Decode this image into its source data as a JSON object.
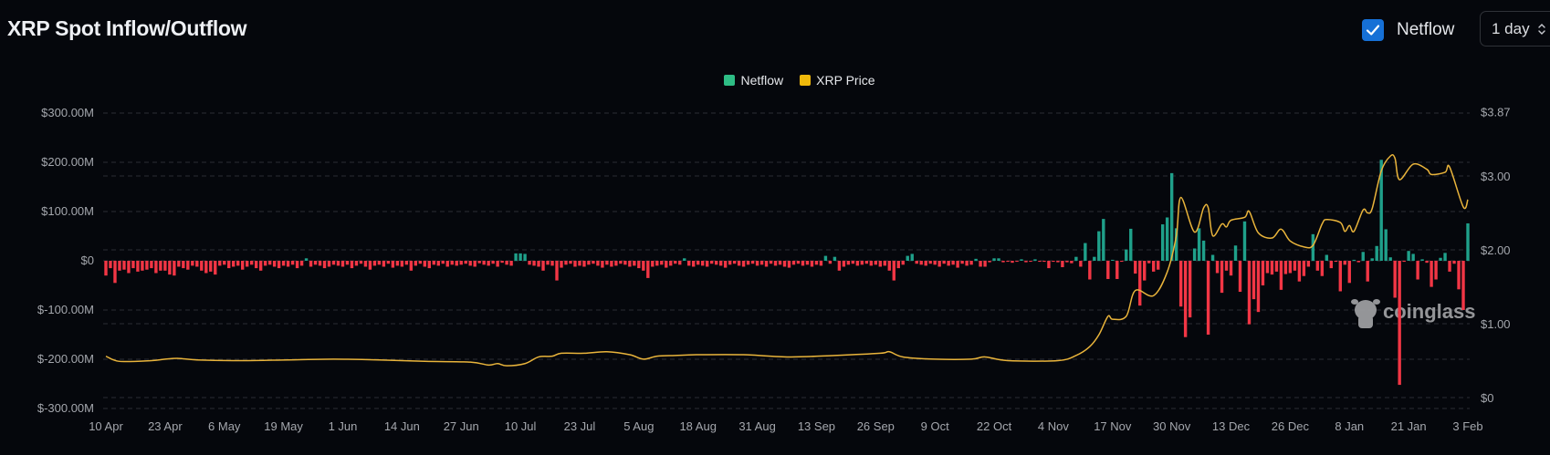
{
  "header": {
    "title": "XRP Spot Inflow/Outflow"
  },
  "controls": {
    "netflow_toggle": {
      "label": "Netflow",
      "checked": true,
      "icon": "check-icon"
    },
    "interval_select": {
      "value": "1 day",
      "icon": "up-down-chevron-icon"
    }
  },
  "watermark": {
    "text": "coinglass"
  },
  "colors": {
    "inflow": "#1fa08a",
    "outflow": "#f23645",
    "price": "#e9b43b",
    "netflow_legend": "#2ebd85",
    "price_legend": "#f0b90b",
    "background": "#05070c",
    "grid": "#2b2e35"
  },
  "chart_data": {
    "type": "bar+line",
    "title": "XRP Spot Inflow/Outflow",
    "legend": {
      "position": "top-center",
      "entries": [
        "Netflow",
        "XRP Price"
      ]
    },
    "grid": true,
    "x_tick_labels": [
      "10 Apr",
      "23 Apr",
      "6 May",
      "19 May",
      "1 Jun",
      "14 Jun",
      "27 Jun",
      "10 Jul",
      "23 Jul",
      "5 Aug",
      "18 Aug",
      "31 Aug",
      "13 Sep",
      "26 Sep",
      "9 Oct",
      "22 Oct",
      "4 Nov",
      "17 Nov",
      "30 Nov",
      "13 Dec",
      "26 Dec",
      "8 Jan",
      "21 Jan",
      "3 Feb"
    ],
    "y_left": {
      "ticks": [
        "$300.00M",
        "$200.00M",
        "$100.00M",
        "$0",
        "$-100.00M",
        "$-200.00M",
        "$-300.00M"
      ],
      "range": [
        -300,
        300
      ],
      "unit": "USD millions"
    },
    "y_right": {
      "ticks": [
        "$3.87",
        "$3.00",
        "$2.00",
        "$1.00",
        "$0"
      ],
      "range": [
        0,
        3.87
      ],
      "unit": "USD"
    },
    "series": [
      {
        "name": "Netflow",
        "type": "bar",
        "axis": "left",
        "interval": "daily",
        "from": "10 Apr",
        "to": "3 Feb",
        "values": [
          -30,
          -15,
          -45,
          -20,
          -18,
          -25,
          -15,
          -22,
          -20,
          -18,
          -15,
          -25,
          -20,
          -20,
          -28,
          -30,
          -12,
          -15,
          -18,
          -10,
          -12,
          -20,
          -25,
          -22,
          -28,
          -10,
          -8,
          -15,
          -12,
          -10,
          -18,
          -12,
          -8,
          -15,
          -20,
          -10,
          -8,
          -12,
          -15,
          -10,
          -12,
          -8,
          -15,
          -10,
          5,
          -12,
          -8,
          -10,
          -15,
          -12,
          -8,
          -10,
          -12,
          -8,
          -15,
          -10,
          -6,
          -12,
          -18,
          -10,
          -8,
          -12,
          -6,
          -14,
          -10,
          -12,
          -8,
          -20,
          -10,
          -6,
          -12,
          -15,
          -8,
          -10,
          -6,
          -12,
          -8,
          -10,
          -8,
          -6,
          -10,
          -12,
          -5,
          -8,
          -10,
          -6,
          -12,
          -4,
          -8,
          -10,
          15,
          15,
          14,
          -8,
          -10,
          -12,
          -20,
          -8,
          -10,
          -40,
          -14,
          -8,
          -6,
          -12,
          -10,
          -12,
          -8,
          -6,
          -10,
          -14,
          -8,
          -12,
          -10,
          -6,
          -8,
          -12,
          -10,
          -15,
          -20,
          -35,
          -12,
          -10,
          -8,
          -14,
          -10,
          -6,
          -8,
          5,
          -10,
          -12,
          -8,
          -10,
          -12,
          -6,
          -8,
          -10,
          -14,
          -8,
          -6,
          -10,
          -12,
          -8,
          -6,
          -10,
          -8,
          -12,
          -6,
          -10,
          -8,
          -12,
          -14,
          -8,
          -6,
          -10,
          -8,
          -12,
          -8,
          -10,
          10,
          -6,
          8,
          -20,
          -12,
          -8,
          -6,
          -10,
          -8,
          -6,
          -10,
          -8,
          -12,
          -10,
          -20,
          -40,
          -15,
          -8,
          10,
          14,
          -6,
          -8,
          -10,
          -6,
          -8,
          -12,
          -6,
          -10,
          -8,
          -14,
          -6,
          -10,
          -8,
          4,
          -12,
          -12,
          -3,
          5,
          5,
          -3,
          -2,
          -4,
          -2,
          3,
          -3,
          -2,
          3,
          -2,
          -2,
          -15,
          -2,
          -3,
          -13,
          -3,
          -5,
          8,
          -12,
          36,
          -38,
          8,
          60,
          85,
          -37,
          2,
          -37,
          -2,
          23,
          65,
          -26,
          -91,
          -40,
          -5,
          -22,
          -18,
          74,
          88,
          178,
          66,
          -93,
          -155,
          -115,
          25,
          66,
          41,
          -150,
          12,
          -25,
          -65,
          -20,
          -30,
          31,
          -63,
          80,
          -129,
          -78,
          -104,
          -50,
          -25,
          -28,
          -22,
          -59,
          -27,
          -25,
          -20,
          -42,
          -31,
          -12,
          54,
          -20,
          -31,
          12,
          -15,
          -2,
          -62,
          -8,
          -45,
          2,
          -3,
          18,
          -42,
          5,
          30,
          205,
          64,
          7,
          -75,
          -252,
          -2,
          20,
          14,
          -38,
          3,
          -4,
          -53,
          -38,
          6,
          16,
          -22,
          -6,
          -58,
          -100,
          76
        ]
      },
      {
        "name": "XRP Price",
        "type": "line",
        "axis": "right",
        "points": [
          [
            "10 Apr",
            0.56
          ],
          [
            "13 Apr",
            0.49
          ],
          [
            "20 Apr",
            0.5
          ],
          [
            "23 Apr",
            0.52
          ],
          [
            "26 Apr",
            0.53
          ],
          [
            "30 Apr",
            0.51
          ],
          [
            "10 May",
            0.5
          ],
          [
            "20 May",
            0.51
          ],
          [
            "30 May",
            0.52
          ],
          [
            "9 Jun",
            0.51
          ],
          [
            "19 Jun",
            0.49
          ],
          [
            "29 Jun",
            0.48
          ],
          [
            "3 Jul",
            0.44
          ],
          [
            "5 Jul",
            0.46
          ],
          [
            "7 Jul",
            0.43
          ],
          [
            "11 Jul",
            0.46
          ],
          [
            "14 Jul",
            0.55
          ],
          [
            "17 Jul",
            0.56
          ],
          [
            "19 Jul",
            0.6
          ],
          [
            "24 Jul",
            0.6
          ],
          [
            "29 Jul",
            0.62
          ],
          [
            "3 Aug",
            0.58
          ],
          [
            "6 Aug",
            0.52
          ],
          [
            "9 Aug",
            0.56
          ],
          [
            "13 Aug",
            0.57
          ],
          [
            "18 Aug",
            0.58
          ],
          [
            "28 Aug",
            0.58
          ],
          [
            "7 Sep",
            0.55
          ],
          [
            "17 Sep",
            0.57
          ],
          [
            "27 Sep",
            0.6
          ],
          [
            "29 Sep",
            0.62
          ],
          [
            "2 Oct",
            0.55
          ],
          [
            "9 Oct",
            0.52
          ],
          [
            "17 Oct",
            0.52
          ],
          [
            "20 Oct",
            0.55
          ],
          [
            "25 Oct",
            0.5
          ],
          [
            "5 Nov",
            0.5
          ],
          [
            "9 Nov",
            0.57
          ],
          [
            "12 Nov",
            0.69
          ],
          [
            "14 Nov",
            0.85
          ],
          [
            "16 Nov",
            1.1
          ],
          [
            "17 Nov",
            1.06
          ],
          [
            "20 Nov",
            1.1
          ],
          [
            "22 Nov",
            1.45
          ],
          [
            "26 Nov",
            1.38
          ],
          [
            "29 Nov",
            1.7
          ],
          [
            "1 Dec",
            2.19
          ],
          [
            "2 Dec",
            2.71
          ],
          [
            "5 Dec",
            2.24
          ],
          [
            "7 Dec",
            2.57
          ],
          [
            "8 Dec",
            2.57
          ],
          [
            "9 Dec",
            2.19
          ],
          [
            "11 Dec",
            2.35
          ],
          [
            "12 Dec",
            2.31
          ],
          [
            "13 Dec",
            2.4
          ],
          [
            "16 Dec",
            2.44
          ],
          [
            "17 Dec",
            2.52
          ],
          [
            "19 Dec",
            2.23
          ],
          [
            "22 Dec",
            2.16
          ],
          [
            "24 Dec",
            2.28
          ],
          [
            "26 Dec",
            2.12
          ],
          [
            "29 Dec",
            2.04
          ],
          [
            "31 Dec",
            2.06
          ],
          [
            "2 Jan",
            2.35
          ],
          [
            "3 Jan",
            2.41
          ],
          [
            "6 Jan",
            2.37
          ],
          [
            "7 Jan",
            2.25
          ],
          [
            "8 Jan",
            2.33
          ],
          [
            "9 Jan",
            2.25
          ],
          [
            "11 Jan",
            2.54
          ],
          [
            "12 Jan",
            2.5
          ],
          [
            "13 Jan",
            2.56
          ],
          [
            "15 Jan",
            3.07
          ],
          [
            "17 Jan",
            3.27
          ],
          [
            "18 Jan",
            3.24
          ],
          [
            "19 Jan",
            2.95
          ],
          [
            "22 Jan",
            3.16
          ],
          [
            "25 Jan",
            3.09
          ],
          [
            "26 Jan",
            3.02
          ],
          [
            "29 Jan",
            3.05
          ],
          [
            "30 Jan",
            3.12
          ],
          [
            "2 Feb",
            2.58
          ],
          [
            "3 Feb",
            2.68
          ]
        ]
      }
    ]
  }
}
